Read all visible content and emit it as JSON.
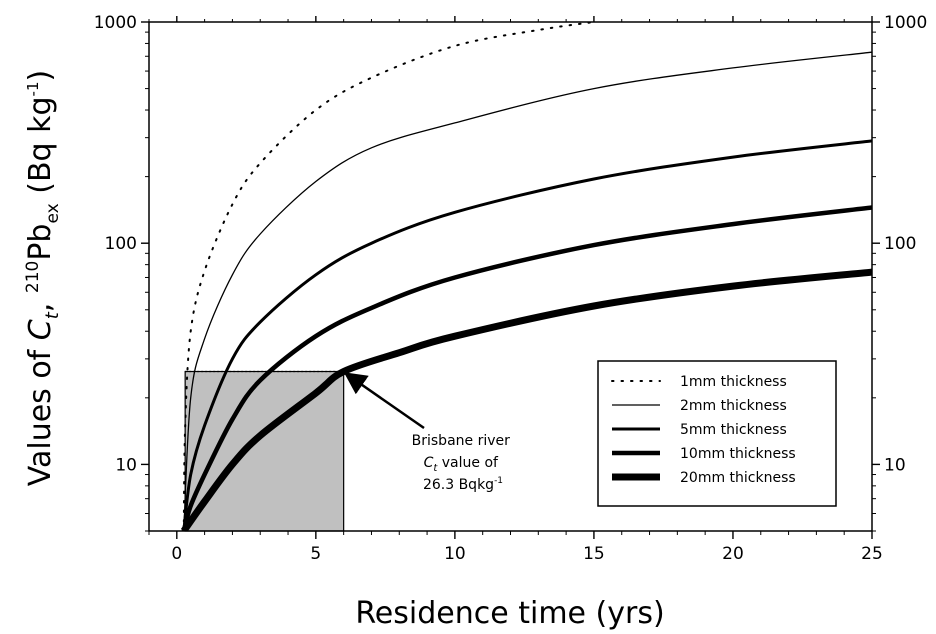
{
  "chart_data": {
    "type": "line",
    "title": "",
    "xlabel": "Residence time (yrs)",
    "ylabel": {
      "prefix": "Values of ",
      "symbol": "C",
      "symbol_sub": "t",
      "sep": ", ",
      "sup": "210",
      "element": "Pb",
      "element_sub": "ex",
      "unit_open": " (Bq kg",
      "unit_sup": "-1",
      "unit_close": ")"
    },
    "xlim": [
      -1,
      25
    ],
    "ylim": [
      5,
      1000
    ],
    "y_scale": "log",
    "grid": false,
    "x_ticks": [
      "0",
      "5",
      "10",
      "15",
      "20",
      "25"
    ],
    "y_ticks_left": [
      "10",
      "100",
      "1000"
    ],
    "y_ticks_right": [
      "10",
      "100",
      "1000"
    ],
    "legend_position": "center-right",
    "series": [
      {
        "name": "1mm thickness",
        "style": "dotted",
        "line_width": 1.5,
        "points": [
          [
            0.25,
            5
          ],
          [
            0.3,
            15
          ],
          [
            0.5,
            40
          ],
          [
            1,
            75
          ],
          [
            2,
            150
          ],
          [
            3,
            230
          ],
          [
            5,
            400
          ],
          [
            7,
            560
          ],
          [
            10,
            780
          ],
          [
            13,
            920
          ],
          [
            15,
            1000
          ]
        ]
      },
      {
        "name": "2mm thickness",
        "style": "solid",
        "line_width": 1.3,
        "points": [
          [
            0.25,
            5
          ],
          [
            0.5,
            20
          ],
          [
            1,
            37
          ],
          [
            2,
            72
          ],
          [
            3,
            110
          ],
          [
            5,
            190
          ],
          [
            7,
            270
          ],
          [
            10,
            350
          ],
          [
            15,
            500
          ],
          [
            20,
            620
          ],
          [
            25,
            730
          ]
        ]
      },
      {
        "name": "5mm thickness",
        "style": "solid",
        "line_width": 3,
        "points": [
          [
            0.25,
            5
          ],
          [
            0.5,
            9
          ],
          [
            1,
            15
          ],
          [
            2,
            30
          ],
          [
            3,
            44
          ],
          [
            5,
            72
          ],
          [
            7,
            100
          ],
          [
            10,
            138
          ],
          [
            15,
            195
          ],
          [
            20,
            245
          ],
          [
            25,
            290
          ]
        ]
      },
      {
        "name": "10mm thickness",
        "style": "solid",
        "line_width": 4.5,
        "points": [
          [
            0.25,
            5
          ],
          [
            0.5,
            6.5
          ],
          [
            1,
            9
          ],
          [
            2,
            16
          ],
          [
            3,
            24
          ],
          [
            5,
            38
          ],
          [
            7,
            51
          ],
          [
            10,
            70
          ],
          [
            15,
            98
          ],
          [
            20,
            122
          ],
          [
            25,
            145
          ]
        ]
      },
      {
        "name": "20mm thickness",
        "style": "solid",
        "line_width": 7,
        "points": [
          [
            0.25,
            5
          ],
          [
            1,
            6.8
          ],
          [
            2,
            10
          ],
          [
            3,
            13.5
          ],
          [
            5,
            21
          ],
          [
            6,
            26.3
          ],
          [
            8,
            32
          ],
          [
            10,
            38
          ],
          [
            15,
            52
          ],
          [
            20,
            64
          ],
          [
            25,
            74
          ]
        ]
      }
    ],
    "shaded_region": {
      "x": [
        0.3,
        6
      ],
      "y": [
        5,
        26.3
      ],
      "color": "#c0c0c0"
    },
    "annotation": {
      "lines": [
        {
          "text": "Brisbane river"
        },
        {
          "symbol": "C",
          "sub": "t",
          "text": " value of"
        },
        {
          "text": "26.3 Bqkg",
          "sup": "-1"
        }
      ],
      "arrow_to": [
        6,
        26.3
      ]
    }
  }
}
